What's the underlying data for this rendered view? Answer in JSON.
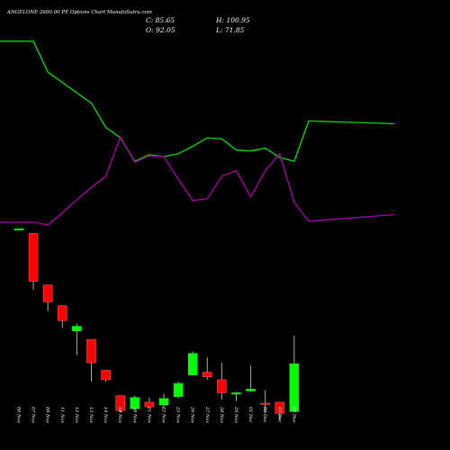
{
  "header": {
    "title": "ANGELONE 2600.00 PE Options Chart MunafaSutra.com",
    "close_label": "C: 85.65",
    "high_label": "H: 100.95",
    "open_label": "O: 92.05",
    "low_label": "L: 71.85"
  },
  "colors": {
    "background": "#000000",
    "up": "#00ff00",
    "down": "#ff0000",
    "wick": "#aaaaaa",
    "green_line": "#00dd00",
    "purple_line": "#aa00aa"
  },
  "chart_data": {
    "type": "candlestick",
    "x": [
      "06 Nov",
      "07 Nov",
      "08 Nov",
      "11 Nov",
      "12 Nov",
      "13 Nov",
      "14 Nov",
      "18 Nov",
      "19 Nov",
      "21 Nov",
      "22 Nov",
      "25 Nov",
      "26 Nov",
      "27 Nov",
      "28 Nov",
      "29 Nov",
      "01 Dec",
      "02 Dec",
      "03 Dec",
      "04 Dec",
      "05 Dec",
      "06 Dec"
    ],
    "ohlc": [
      {
        "o": 296,
        "h": 296,
        "l": 296,
        "c": 296
      },
      {
        "o": 291,
        "h": 291,
        "l": 231,
        "c": 240
      },
      {
        "o": 236,
        "h": 236,
        "l": 208,
        "c": 218
      },
      {
        "o": 214,
        "h": 214,
        "l": 190,
        "c": 198
      },
      {
        "o": 187,
        "h": 195,
        "l": 161,
        "c": 192
      },
      {
        "o": 178,
        "h": 178,
        "l": 133,
        "c": 153
      },
      {
        "o": 145,
        "h": 145,
        "l": 133,
        "c": 135
      },
      {
        "o": 118,
        "h": 118,
        "l": 100,
        "c": 102
      },
      {
        "o": 104,
        "h": 118,
        "l": 102,
        "c": 116
      },
      {
        "o": 111,
        "h": 116,
        "l": 105,
        "c": 106
      },
      {
        "o": 108,
        "h": 120,
        "l": 105,
        "c": 115
      },
      {
        "o": 117,
        "h": 133,
        "l": 115,
        "c": 131
      },
      {
        "o": 140,
        "h": 165,
        "l": 140,
        "c": 163
      },
      {
        "o": 143,
        "h": 159,
        "l": 135,
        "c": 138
      },
      {
        "o": 135,
        "h": 153,
        "l": 114,
        "c": 121
      },
      {
        "o": 120,
        "h": 122,
        "l": 112,
        "c": 121
      },
      {
        "o": 123,
        "h": 150,
        "l": 122,
        "c": 125
      },
      {
        "o": 110,
        "h": 124,
        "l": 99,
        "c": 109
      },
      {
        "o": 111,
        "h": 111,
        "l": 92,
        "c": 99
      },
      {
        "o": 101,
        "h": 182,
        "l": 101,
        "c": 152
      },
      {
        "o": 157,
        "h": 157,
        "l": 117,
        "c": 146
      },
      {
        "o": 92.05,
        "h": 100.95,
        "l": 71.85,
        "c": 85.65
      }
    ],
    "series": [
      {
        "values": [
          496,
          496,
          463,
          452,
          441,
          430,
          404,
          393,
          368,
          375,
          373,
          376,
          384,
          393,
          392,
          380,
          379,
          382,
          372,
          368,
          411,
          408
        ]
      },
      {
        "values": [
          303,
          303,
          300,
          313,
          327,
          340,
          352,
          394,
          367,
          374,
          373,
          349,
          326,
          328,
          352,
          358,
          330,
          358,
          376,
          324,
          304,
          311
        ]
      }
    ],
    "ylim": [
      60,
      540
    ]
  }
}
